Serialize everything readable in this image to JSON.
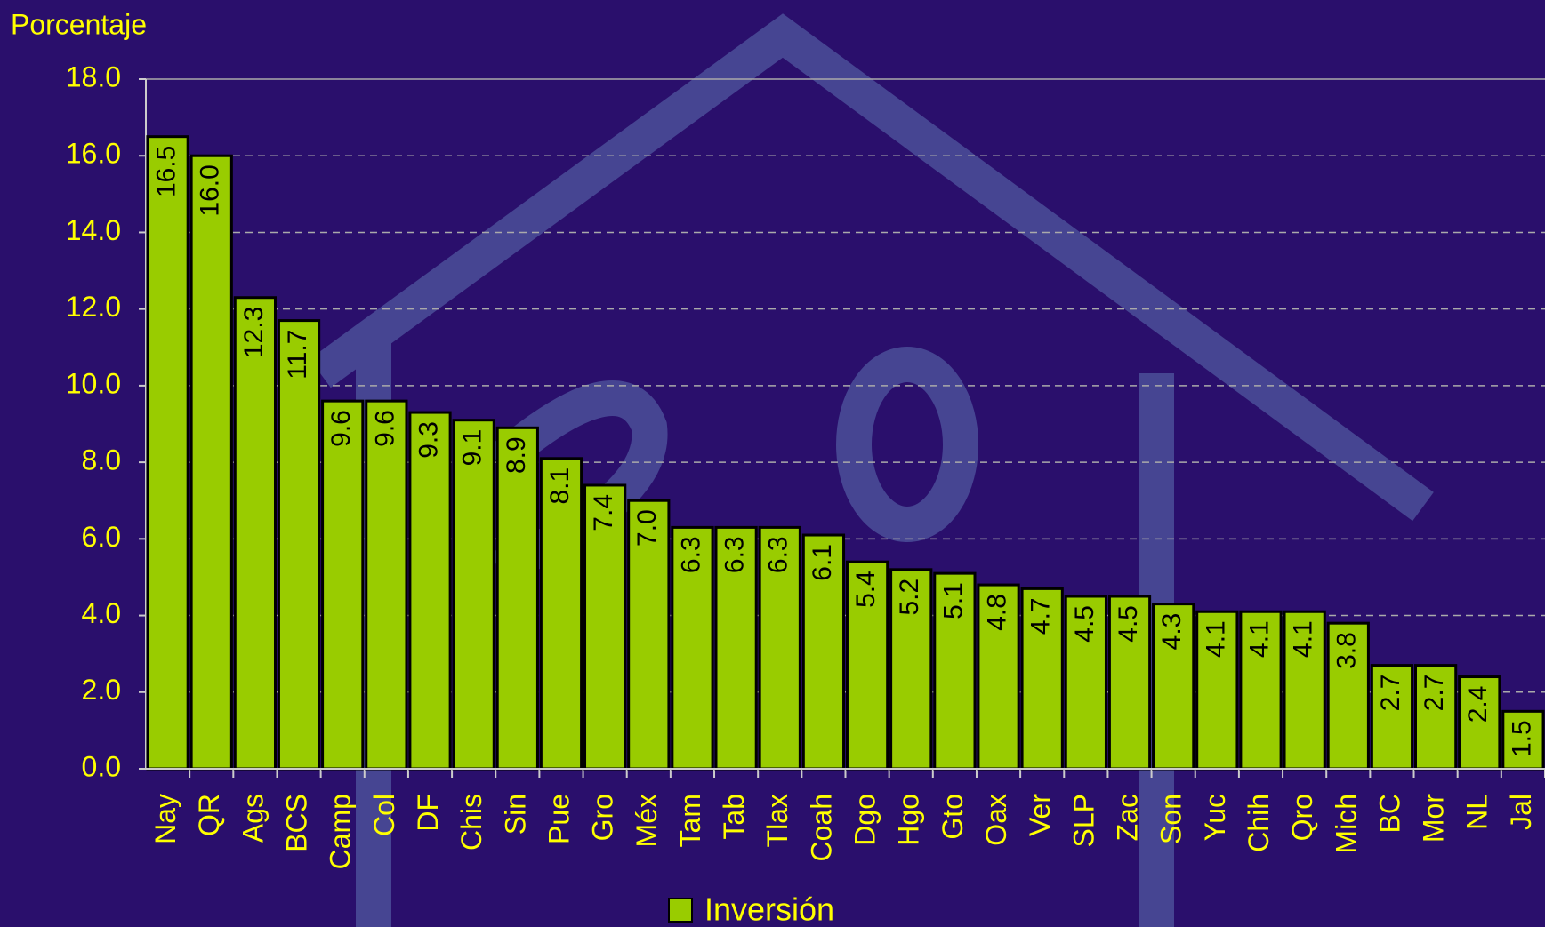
{
  "chart_data": {
    "type": "bar",
    "y_label": "Porcentaje",
    "categories": [
      "Nay",
      "QR",
      "Ags",
      "BCS",
      "Camp",
      "Col",
      "DF",
      "Chis",
      "Sin",
      "Pue",
      "Gro",
      "Méx",
      "Tam",
      "Tab",
      "Tlax",
      "Coah",
      "Dgo",
      "Hgo",
      "Gto",
      "Oax",
      "Ver",
      "SLP",
      "Zac",
      "Son",
      "Yuc",
      "Chih",
      "Qro",
      "Mich",
      "BC",
      "Mor",
      "NL",
      "Jal"
    ],
    "series": [
      {
        "name": "Inversión",
        "color": "#99cc00",
        "values": [
          16.5,
          16.0,
          12.3,
          11.7,
          9.6,
          9.6,
          9.3,
          9.1,
          8.9,
          8.1,
          7.4,
          7.0,
          6.3,
          6.3,
          6.3,
          6.1,
          5.4,
          5.2,
          5.1,
          4.8,
          4.7,
          4.5,
          4.5,
          4.3,
          4.1,
          4.1,
          4.1,
          3.8,
          2.7,
          2.7,
          2.4,
          1.5
        ],
        "value_labels": [
          "16.5",
          "16.0",
          "12.3",
          "11.7",
          "9.6",
          "9.6",
          "9.3",
          "9.1",
          "8.9",
          "8.1",
          "7.4",
          "7.0",
          "6.3",
          "6.3",
          "6.3",
          "6.1",
          "5.4",
          "5.2",
          "5.1",
          "4.8",
          "4.7",
          "4.5",
          "4.5",
          "4.3",
          "4.1",
          "4.1",
          "4.1",
          "3.8",
          "2.7",
          "2.7",
          "2.4",
          "1.5"
        ]
      }
    ],
    "ylim": [
      0,
      18
    ],
    "yticks": [
      {
        "value": 0,
        "label": "0.0"
      },
      {
        "value": 2,
        "label": "2.0"
      },
      {
        "value": 4,
        "label": "4.0"
      },
      {
        "value": 6,
        "label": "6.0"
      },
      {
        "value": 8,
        "label": "8.0"
      },
      {
        "value": 10,
        "label": "10.0"
      },
      {
        "value": 12,
        "label": "12.0"
      },
      {
        "value": 14,
        "label": "14.0"
      },
      {
        "value": 16,
        "label": "16.0"
      },
      {
        "value": 18,
        "label": "18.0"
      }
    ],
    "grid": true,
    "legend": "bottom"
  }
}
